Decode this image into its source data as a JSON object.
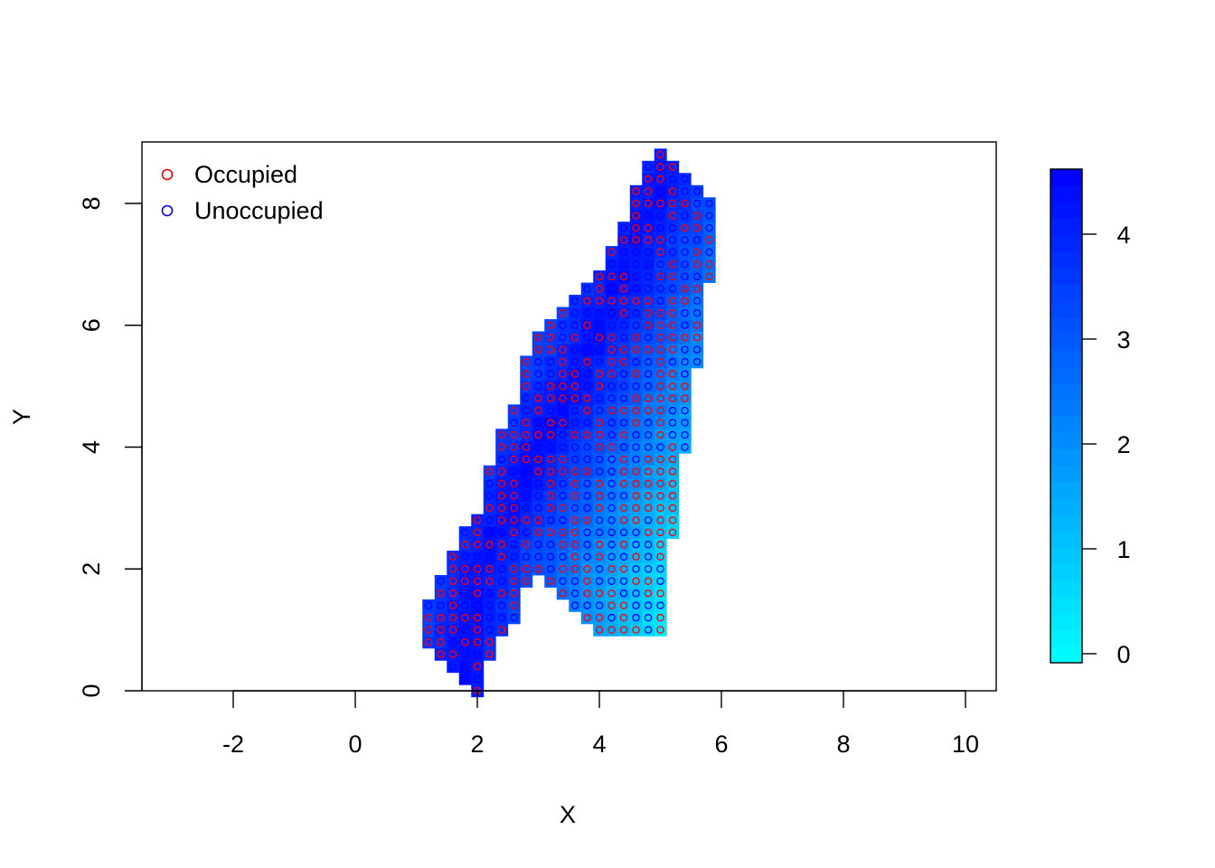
{
  "chart_data": {
    "type": "heatmap",
    "title": "",
    "xlabel": "X",
    "ylabel": "Y",
    "xlim": [
      -3.5,
      10.5
    ],
    "ylim": [
      0,
      9
    ],
    "xticks": [
      "-2",
      "0",
      "2",
      "4",
      "6",
      "8",
      "10"
    ],
    "yticks": [
      "0",
      "2",
      "4",
      "6",
      "8"
    ],
    "grid": false,
    "cell_size": 0.2,
    "legend": {
      "position": "top-left",
      "entries": [
        {
          "label": "Occupied",
          "color": "#ff0000"
        },
        {
          "label": "Unoccupied",
          "color": "#0000ff"
        }
      ]
    },
    "colorbar": {
      "min": 0,
      "max": 4.6,
      "ticks": [
        "0",
        "1",
        "2",
        "3",
        "4"
      ],
      "low_color": "#00ffff",
      "high_color": "#0000ff"
    },
    "occupied_fraction_estimate": 0.55,
    "region_rows": [
      {
        "y": 0.0,
        "x_min": 2.0,
        "x_max": 2.0
      },
      {
        "y": 0.2,
        "x_min": 1.8,
        "x_max": 2.0
      },
      {
        "y": 0.4,
        "x_min": 1.6,
        "x_max": 2.0
      },
      {
        "y": 0.6,
        "x_min": 1.4,
        "x_max": 2.2
      },
      {
        "y": 0.8,
        "x_min": 1.2,
        "x_max": 2.2
      },
      {
        "y": 1.0,
        "x_min": 1.2,
        "x_max": 2.4,
        "x2_min": 4.0,
        "x2_max": 5.0
      },
      {
        "y": 1.2,
        "x_min": 1.2,
        "x_max": 2.6,
        "x2_min": 3.8,
        "x2_max": 5.0
      },
      {
        "y": 1.4,
        "x_min": 1.2,
        "x_max": 2.6,
        "x2_min": 3.6,
        "x2_max": 5.0
      },
      {
        "y": 1.6,
        "x_min": 1.4,
        "x_max": 2.6,
        "x2_min": 3.4,
        "x2_max": 5.0
      },
      {
        "y": 1.8,
        "x_min": 1.4,
        "x_max": 2.8,
        "x2_min": 3.2,
        "x2_max": 5.0
      },
      {
        "y": 2.0,
        "x_min": 1.6,
        "x_max": 5.0
      },
      {
        "y": 2.2,
        "x_min": 1.6,
        "x_max": 5.0
      },
      {
        "y": 2.4,
        "x_min": 1.8,
        "x_max": 5.0
      },
      {
        "y": 2.6,
        "x_min": 1.8,
        "x_max": 5.2
      },
      {
        "y": 2.8,
        "x_min": 2.0,
        "x_max": 5.2
      },
      {
        "y": 3.0,
        "x_min": 2.2,
        "x_max": 5.2
      },
      {
        "y": 3.2,
        "x_min": 2.2,
        "x_max": 5.2
      },
      {
        "y": 3.4,
        "x_min": 2.2,
        "x_max": 5.2
      },
      {
        "y": 3.6,
        "x_min": 2.2,
        "x_max": 5.2
      },
      {
        "y": 3.8,
        "x_min": 2.4,
        "x_max": 5.2
      },
      {
        "y": 4.0,
        "x_min": 2.4,
        "x_max": 5.4
      },
      {
        "y": 4.2,
        "x_min": 2.4,
        "x_max": 5.4
      },
      {
        "y": 4.4,
        "x_min": 2.6,
        "x_max": 5.4
      },
      {
        "y": 4.6,
        "x_min": 2.6,
        "x_max": 5.4
      },
      {
        "y": 4.8,
        "x_min": 2.8,
        "x_max": 5.4
      },
      {
        "y": 5.0,
        "x_min": 2.8,
        "x_max": 5.4
      },
      {
        "y": 5.2,
        "x_min": 2.8,
        "x_max": 5.4
      },
      {
        "y": 5.4,
        "x_min": 2.8,
        "x_max": 5.6
      },
      {
        "y": 5.6,
        "x_min": 3.0,
        "x_max": 5.6
      },
      {
        "y": 5.8,
        "x_min": 3.0,
        "x_max": 5.6
      },
      {
        "y": 6.0,
        "x_min": 3.2,
        "x_max": 5.6
      },
      {
        "y": 6.2,
        "x_min": 3.4,
        "x_max": 5.6
      },
      {
        "y": 6.4,
        "x_min": 3.6,
        "x_max": 5.6
      },
      {
        "y": 6.6,
        "x_min": 3.8,
        "x_max": 5.6
      },
      {
        "y": 6.8,
        "x_min": 4.0,
        "x_max": 5.8
      },
      {
        "y": 7.0,
        "x_min": 4.2,
        "x_max": 5.8
      },
      {
        "y": 7.2,
        "x_min": 4.2,
        "x_max": 5.8
      },
      {
        "y": 7.4,
        "x_min": 4.4,
        "x_max": 5.8
      },
      {
        "y": 7.6,
        "x_min": 4.4,
        "x_max": 5.8
      },
      {
        "y": 7.8,
        "x_min": 4.6,
        "x_max": 5.8
      },
      {
        "y": 8.0,
        "x_min": 4.6,
        "x_max": 5.8
      },
      {
        "y": 8.2,
        "x_min": 4.6,
        "x_max": 5.6
      },
      {
        "y": 8.4,
        "x_min": 4.8,
        "x_max": 5.4
      },
      {
        "y": 8.6,
        "x_min": 4.8,
        "x_max": 5.2
      },
      {
        "y": 8.8,
        "x_min": 5.0,
        "x_max": 5.0
      }
    ]
  }
}
